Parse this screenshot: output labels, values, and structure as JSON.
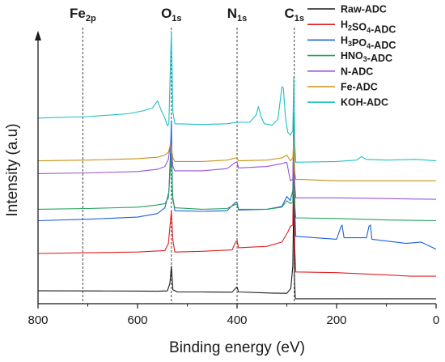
{
  "chart_data": {
    "type": "line",
    "xlabel": "Binding energy (eV)",
    "ylabel": "Intensity (a.u)",
    "xlim": [
      800,
      0
    ],
    "x_reversed": true,
    "xticks": [
      800,
      600,
      400,
      200,
      0
    ],
    "yticks_shown": false,
    "grid": false,
    "legend_position": "top-right",
    "reference_lines": [
      {
        "x": 710,
        "label_main": "Fe",
        "label_sub": "2p"
      },
      {
        "x": 532,
        "label_main": "O",
        "label_sub": "1s"
      },
      {
        "x": 400,
        "label_main": "N",
        "label_sub": "1s"
      },
      {
        "x": 285,
        "label_main": "C",
        "label_sub": "1s"
      }
    ],
    "series": [
      {
        "legend": [
          {
            "t": "Raw-ADC",
            "s": false
          }
        ],
        "color": "#1a1a1a",
        "points": [
          [
            800,
            0.28
          ],
          [
            700,
            0.27
          ],
          [
            600,
            0.26
          ],
          [
            560,
            0.25
          ],
          [
            540,
            0.27
          ],
          [
            535,
            0.8
          ],
          [
            532,
            2.0
          ],
          [
            529,
            0.35
          ],
          [
            520,
            0.2
          ],
          [
            470,
            0.2
          ],
          [
            410,
            0.18
          ],
          [
            402,
            0.5
          ],
          [
            400,
            0.55
          ],
          [
            397,
            0.2
          ],
          [
            330,
            0.12
          ],
          [
            300,
            0.1
          ],
          [
            292,
            0.45
          ],
          [
            288,
            2.0
          ],
          [
            286,
            7.0
          ],
          [
            284.5,
            1.0
          ],
          [
            283,
            -0.28
          ],
          [
            200,
            -0.28
          ],
          [
            100,
            -0.28
          ],
          [
            0,
            -0.28
          ]
        ]
      },
      {
        "legend": [
          {
            "t": "H",
            "s": false
          },
          {
            "t": "2",
            "s": true
          },
          {
            "t": "SO",
            "s": false
          },
          {
            "t": "4",
            "s": true
          },
          {
            "t": "-ADC",
            "s": false
          }
        ],
        "color": "#e02020",
        "points": [
          [
            800,
            2.9
          ],
          [
            700,
            2.95
          ],
          [
            600,
            3.0
          ],
          [
            545,
            3.1
          ],
          [
            538,
            3.6
          ],
          [
            534,
            5.1
          ],
          [
            532,
            5.9
          ],
          [
            529,
            3.8
          ],
          [
            525,
            3.0
          ],
          [
            470,
            3.05
          ],
          [
            410,
            3.15
          ],
          [
            403,
            3.7
          ],
          [
            400,
            3.8
          ],
          [
            397,
            3.3
          ],
          [
            340,
            3.4
          ],
          [
            310,
            3.7
          ],
          [
            298,
            4.4
          ],
          [
            293,
            4.8
          ],
          [
            288,
            4.9
          ],
          [
            286,
            10.6
          ],
          [
            284,
            3.3
          ],
          [
            282,
            1.6
          ],
          [
            200,
            1.55
          ],
          [
            100,
            1.4
          ],
          [
            50,
            1.3
          ],
          [
            0,
            1.3
          ]
        ]
      },
      {
        "legend": [
          {
            "t": "H",
            "s": false
          },
          {
            "t": "3",
            "s": true
          },
          {
            "t": "PO",
            "s": false
          },
          {
            "t": "4",
            "s": true
          },
          {
            "t": "-ADC",
            "s": false
          }
        ],
        "color": "#1f5fd6",
        "points": [
          [
            800,
            5.2
          ],
          [
            700,
            5.3
          ],
          [
            600,
            5.45
          ],
          [
            560,
            5.7
          ],
          [
            545,
            6.1
          ],
          [
            537,
            7.2
          ],
          [
            534,
            9.8
          ],
          [
            532,
            12.2
          ],
          [
            530,
            7.0
          ],
          [
            525,
            5.9
          ],
          [
            470,
            5.85
          ],
          [
            420,
            5.9
          ],
          [
            403,
            6.5
          ],
          [
            400,
            6.5
          ],
          [
            397,
            5.95
          ],
          [
            340,
            6.0
          ],
          [
            310,
            6.2
          ],
          [
            300,
            6.9
          ],
          [
            293,
            6.6
          ],
          [
            288,
            7.3
          ],
          [
            286,
            12.3
          ],
          [
            284,
            5.9
          ],
          [
            282,
            4.1
          ],
          [
            200,
            3.9
          ],
          [
            192,
            4.7
          ],
          [
            189,
            4.9
          ],
          [
            185,
            4.0
          ],
          [
            140,
            4.0
          ],
          [
            135,
            4.8
          ],
          [
            132,
            4.9
          ],
          [
            129,
            3.9
          ],
          [
            60,
            3.6
          ],
          [
            30,
            3.7
          ],
          [
            0,
            3.2
          ]
        ]
      },
      {
        "legend": [
          {
            "t": "HNO",
            "s": false
          },
          {
            "t": "3",
            "s": true
          },
          {
            "t": "-ADC",
            "s": false
          }
        ],
        "color": "#22a05a",
        "points": [
          [
            800,
            6.0
          ],
          [
            700,
            6.05
          ],
          [
            600,
            6.15
          ],
          [
            560,
            6.3
          ],
          [
            545,
            6.4
          ],
          [
            538,
            6.8
          ],
          [
            534,
            8.9
          ],
          [
            532,
            9.8
          ],
          [
            529,
            6.6
          ],
          [
            525,
            6.1
          ],
          [
            470,
            6.0
          ],
          [
            420,
            6.05
          ],
          [
            403,
            6.35
          ],
          [
            400,
            6.35
          ],
          [
            397,
            6.0
          ],
          [
            340,
            6.0
          ],
          [
            310,
            6.15
          ],
          [
            300,
            6.6
          ],
          [
            293,
            6.4
          ],
          [
            288,
            6.5
          ],
          [
            286,
            12.8
          ],
          [
            284,
            6.3
          ],
          [
            282,
            5.4
          ],
          [
            200,
            5.35
          ],
          [
            100,
            5.25
          ],
          [
            0,
            5.2
          ]
        ]
      },
      {
        "legend": [
          {
            "t": "N-ADC",
            "s": false
          }
        ],
        "color": "#9a55d6",
        "points": [
          [
            800,
            8.5
          ],
          [
            700,
            8.55
          ],
          [
            600,
            8.65
          ],
          [
            560,
            8.8
          ],
          [
            545,
            9.0
          ],
          [
            538,
            9.5
          ],
          [
            534,
            10.6
          ],
          [
            532,
            10.3
          ],
          [
            529,
            9.0
          ],
          [
            525,
            8.7
          ],
          [
            470,
            8.7
          ],
          [
            420,
            8.85
          ],
          [
            403,
            9.3
          ],
          [
            400,
            9.3
          ],
          [
            397,
            8.9
          ],
          [
            340,
            9.0
          ],
          [
            310,
            9.2
          ],
          [
            300,
            9.3
          ],
          [
            293,
            8.0
          ],
          [
            288,
            8.1
          ],
          [
            286,
            11.4
          ],
          [
            284,
            7.7
          ],
          [
            282,
            6.8
          ],
          [
            200,
            6.8
          ],
          [
            100,
            6.75
          ],
          [
            0,
            6.7
          ]
        ]
      },
      {
        "legend": [
          {
            "t": "Fe-ADC",
            "s": false
          }
        ],
        "color": "#c89318",
        "points": [
          [
            800,
            9.4
          ],
          [
            700,
            9.45
          ],
          [
            600,
            9.55
          ],
          [
            560,
            9.65
          ],
          [
            545,
            9.8
          ],
          [
            538,
            10.0
          ],
          [
            534,
            10.5
          ],
          [
            532,
            10.3
          ],
          [
            529,
            9.6
          ],
          [
            525,
            9.35
          ],
          [
            470,
            9.35
          ],
          [
            420,
            9.45
          ],
          [
            403,
            9.6
          ],
          [
            400,
            9.6
          ],
          [
            397,
            9.4
          ],
          [
            340,
            9.45
          ],
          [
            310,
            9.6
          ],
          [
            300,
            9.8
          ],
          [
            293,
            9.4
          ],
          [
            288,
            9.6
          ],
          [
            286,
            10.9
          ],
          [
            284,
            8.6
          ],
          [
            282,
            8.1
          ],
          [
            200,
            8.0
          ],
          [
            100,
            8.0
          ],
          [
            0,
            8.0
          ]
        ]
      },
      {
        "legend": [
          {
            "t": "KOH-ADC",
            "s": false
          }
        ],
        "color": "#1fc0c6",
        "points": [
          [
            800,
            12.4
          ],
          [
            700,
            12.5
          ],
          [
            620,
            12.7
          ],
          [
            590,
            12.9
          ],
          [
            570,
            13.1
          ],
          [
            560,
            13.6
          ],
          [
            553,
            13.0
          ],
          [
            545,
            12.4
          ],
          [
            540,
            11.85
          ],
          [
            537,
            12.0
          ],
          [
            534,
            16.0
          ],
          [
            532,
            18.5
          ],
          [
            529,
            12.8
          ],
          [
            525,
            12.0
          ],
          [
            470,
            11.95
          ],
          [
            420,
            12.0
          ],
          [
            400,
            12.1
          ],
          [
            375,
            12.1
          ],
          [
            362,
            12.6
          ],
          [
            357,
            13.2
          ],
          [
            352,
            12.5
          ],
          [
            345,
            12.0
          ],
          [
            330,
            11.9
          ],
          [
            318,
            12.3
          ],
          [
            313,
            13.7
          ],
          [
            310,
            14.6
          ],
          [
            307,
            14.5
          ],
          [
            303,
            12.5
          ],
          [
            298,
            11.4
          ],
          [
            293,
            11.2
          ],
          [
            288,
            11.5
          ],
          [
            286,
            15.3
          ],
          [
            284,
            10.5
          ],
          [
            282,
            9.3
          ],
          [
            200,
            9.35
          ],
          [
            160,
            9.45
          ],
          [
            150,
            9.7
          ],
          [
            140,
            9.5
          ],
          [
            100,
            9.45
          ],
          [
            40,
            9.5
          ],
          [
            0,
            9.4
          ]
        ]
      }
    ]
  }
}
